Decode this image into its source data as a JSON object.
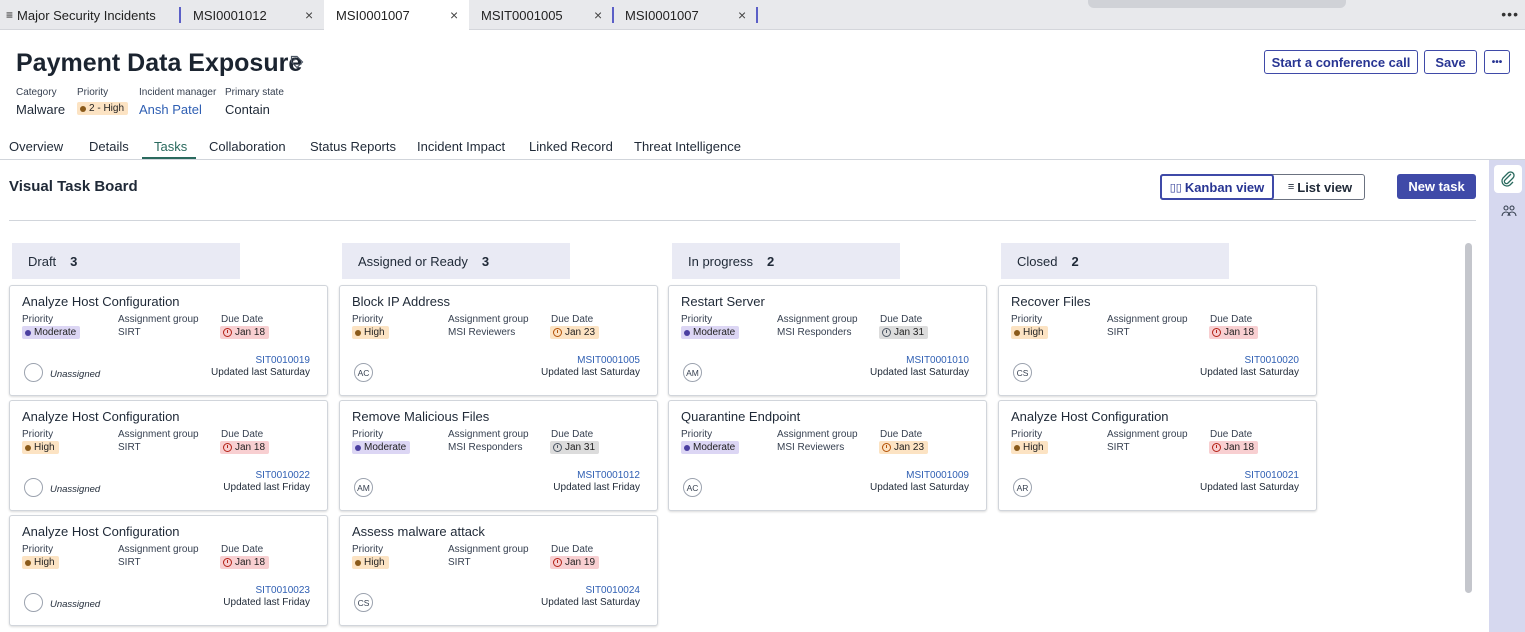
{
  "tabs": [
    {
      "label": "Major Security Incidents",
      "icon": "menu-icon"
    },
    {
      "label": "MSI0001012"
    },
    {
      "label": "MSI0001007",
      "active": true
    },
    {
      "label": "MSIT0001005"
    },
    {
      "label": "MSI0001007"
    }
  ],
  "tab_close": "×",
  "tab_more": "•••",
  "record": {
    "title": "Payment Data Exposure",
    "category_label": "Category",
    "category": "Malware",
    "priority_label": "Priority",
    "priority": "2 - High",
    "manager_label": "Incident manager",
    "manager": "Ansh Patel",
    "state_label": "Primary state",
    "state": "Contain"
  },
  "actions": {
    "conference": "Start a conference call",
    "save": "Save",
    "more": "•••"
  },
  "subnav": [
    "Overview",
    "Details",
    "Tasks",
    "Collaboration",
    "Status Reports",
    "Incident Impact",
    "Linked Record",
    "Threat Intelligence"
  ],
  "board": {
    "title": "Visual Task Board",
    "kanban": "Kanban view",
    "list": "List view",
    "new_task": "New task",
    "lbl_priority": "Priority",
    "lbl_group": "Assignment group",
    "lbl_due": "Due Date"
  },
  "columns": [
    {
      "name": "Draft",
      "count": "3"
    },
    {
      "name": "Assigned or Ready",
      "count": "3"
    },
    {
      "name": "In progress",
      "count": "2"
    },
    {
      "name": "Closed",
      "count": "2"
    }
  ],
  "cards": [
    [
      {
        "title": "Analyze Host Configuration",
        "priority": "Moderate",
        "group": "SIRT",
        "due": "Jan 18",
        "due_level": "red",
        "number": "SIT0010019",
        "updated": "Updated last Saturday",
        "assignee": "",
        "unassigned": "Unassigned"
      },
      {
        "title": "Analyze Host Configuration",
        "priority": "High",
        "group": "SIRT",
        "due": "Jan 18",
        "due_level": "red",
        "number": "SIT0010022",
        "updated": "Updated last Friday",
        "assignee": "",
        "unassigned": "Unassigned"
      },
      {
        "title": "Analyze Host Configuration",
        "priority": "High",
        "group": "SIRT",
        "due": "Jan 18",
        "due_level": "red",
        "number": "SIT0010023",
        "updated": "Updated last Friday",
        "assignee": "",
        "unassigned": "Unassigned"
      }
    ],
    [
      {
        "title": "Block IP Address",
        "priority": "High",
        "group": "MSI Reviewers",
        "due": "Jan 23",
        "due_level": "orange",
        "number": "MSIT0001005",
        "updated": "Updated last Saturday",
        "assignee": "AC"
      },
      {
        "title": "Remove Malicious Files",
        "priority": "Moderate",
        "group": "MSI Responders",
        "due": "Jan 31",
        "due_level": "gray",
        "number": "MSIT0001012",
        "updated": "Updated last Friday",
        "assignee": "AM"
      },
      {
        "title": "Assess malware attack",
        "priority": "High",
        "group": "SIRT",
        "due": "Jan 19",
        "due_level": "red",
        "number": "SIT0010024",
        "updated": "Updated last Saturday",
        "assignee": "CS"
      }
    ],
    [
      {
        "title": "Restart Server",
        "priority": "Moderate",
        "group": "MSI Responders",
        "due": "Jan 31",
        "due_level": "gray",
        "number": "MSIT0001010",
        "updated": "Updated last Saturday",
        "assignee": "AM"
      },
      {
        "title": "Quarantine Endpoint",
        "priority": "Moderate",
        "group": "MSI Reviewers",
        "due": "Jan 23",
        "due_level": "orange",
        "number": "MSIT0001009",
        "updated": "Updated last Saturday",
        "assignee": "AC"
      }
    ],
    [
      {
        "title": "Recover Files",
        "priority": "High",
        "group": "SIRT",
        "due": "Jan 18",
        "due_level": "red",
        "number": "SIT0010020",
        "updated": "Updated last Saturday",
        "assignee": "CS"
      },
      {
        "title": "Analyze Host Configuration",
        "priority": "High",
        "group": "SIRT",
        "due": "Jan 18",
        "due_level": "red",
        "number": "SIT0010021",
        "updated": "Updated last Saturday",
        "assignee": "AR"
      }
    ]
  ],
  "colors": {
    "accent": "#3f4aa8",
    "high": "#fce3c3",
    "moderate": "#dcd6f4",
    "overdue": "#f8cfd1",
    "tab_active_line": "#2a6a5e"
  }
}
